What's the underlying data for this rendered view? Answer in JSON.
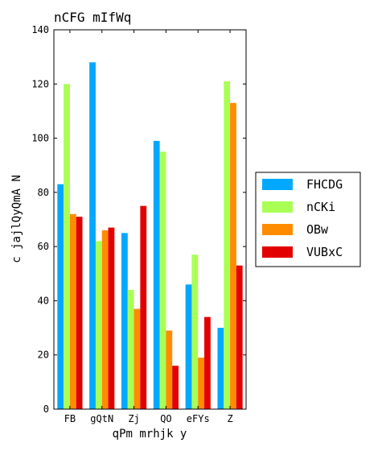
{
  "chart_data": {
    "type": "bar",
    "title": "nCFG mIfWq",
    "xlabel": "qPm mrhjk y",
    "ylabel": "c jajlQyQmA N",
    "categories": [
      "FB",
      "gQtN",
      "Zj",
      "QO",
      "eFYs",
      "Z"
    ],
    "ylim": [
      0,
      140
    ],
    "yticks": [
      0,
      20,
      40,
      60,
      80,
      100,
      120,
      140
    ],
    "grid": false,
    "legend_position": "right",
    "series": [
      {
        "name": "FHCDG",
        "color": "#00a9ff",
        "values": [
          83,
          128,
          65,
          99,
          46,
          30
        ]
      },
      {
        "name": "nCKi",
        "color": "#aaff55",
        "values": [
          120,
          62,
          44,
          95,
          57,
          121
        ]
      },
      {
        "name": "OBw",
        "color": "#ff8c00",
        "values": [
          72,
          66,
          37,
          29,
          19,
          113
        ]
      },
      {
        "name": "VUBxC",
        "color": "#e30000",
        "values": [
          71,
          67,
          75,
          16,
          34,
          53
        ]
      }
    ]
  }
}
